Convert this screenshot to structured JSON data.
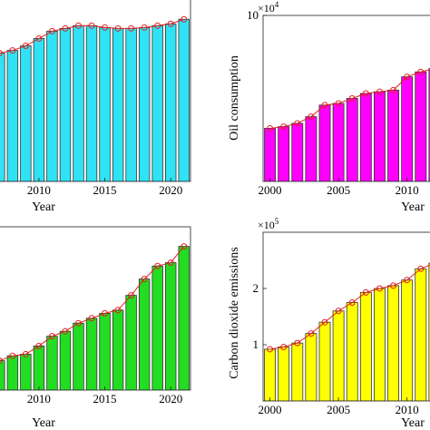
{
  "chart_data": [
    {
      "type": "bar",
      "xlabel": "Year",
      "color": "#2fe3f5",
      "line_color": "#e02020",
      "xlim": [
        2004.5,
        2021.5
      ],
      "ylim": [
        0,
        1
      ],
      "xticks": [
        2010,
        2015,
        2020
      ],
      "x": [
        2007,
        2008,
        2009,
        2010,
        2011,
        2012,
        2013,
        2014,
        2015,
        2016,
        2017,
        2018,
        2019,
        2020,
        2021
      ],
      "values": [
        0.7,
        0.715,
        0.74,
        0.78,
        0.82,
        0.835,
        0.85,
        0.85,
        0.84,
        0.835,
        0.835,
        0.84,
        0.85,
        0.86,
        0.885
      ]
    },
    {
      "type": "bar",
      "xlabel": "Year",
      "ylabel": "Oil consumption",
      "multiplier": {
        "base": "×10",
        "power": "4"
      },
      "color": "#ff00ff",
      "line_color": "#e02020",
      "xlim": [
        1999.5,
        2013
      ],
      "ylim": [
        0,
        10
      ],
      "xticks": [
        2000,
        2005,
        2010
      ],
      "yticks": [
        10
      ],
      "x": [
        2000,
        2001,
        2002,
        2003,
        2004,
        2005,
        2006,
        2007,
        2008,
        2009,
        2010,
        2011,
        2012
      ],
      "values": [
        3.2,
        3.3,
        3.5,
        3.9,
        4.6,
        4.7,
        5.0,
        5.3,
        5.4,
        5.5,
        6.3,
        6.6,
        6.8
      ]
    },
    {
      "type": "bar",
      "xlabel": "Year",
      "color": "#22dd22",
      "line_color": "#e02020",
      "xlim": [
        2004.5,
        2021.5
      ],
      "ylim": [
        0,
        1
      ],
      "xticks": [
        2010,
        2015,
        2020
      ],
      "x": [
        2007,
        2008,
        2009,
        2010,
        2011,
        2012,
        2013,
        2014,
        2015,
        2016,
        2017,
        2018,
        2019,
        2020,
        2021
      ],
      "values": [
        0.18,
        0.21,
        0.22,
        0.27,
        0.33,
        0.36,
        0.41,
        0.44,
        0.47,
        0.49,
        0.58,
        0.68,
        0.76,
        0.78,
        0.88
      ]
    },
    {
      "type": "bar",
      "xlabel": "Year",
      "ylabel": "Carbon dioxide emissions",
      "multiplier": {
        "base": "×10",
        "power": "5"
      },
      "color": "#ffff00",
      "line_color": "#e02020",
      "xlim": [
        1999.5,
        2013
      ],
      "ylim": [
        0,
        3
      ],
      "xticks": [
        2000,
        2005,
        2010
      ],
      "yticks": [
        1,
        2
      ],
      "x": [
        2000,
        2001,
        2002,
        2003,
        2004,
        2005,
        2006,
        2007,
        2008,
        2009,
        2010,
        2011,
        2012
      ],
      "values": [
        0.92,
        0.96,
        1.03,
        1.2,
        1.4,
        1.6,
        1.75,
        1.93,
        2.0,
        2.05,
        2.15,
        2.35,
        2.45
      ]
    }
  ]
}
